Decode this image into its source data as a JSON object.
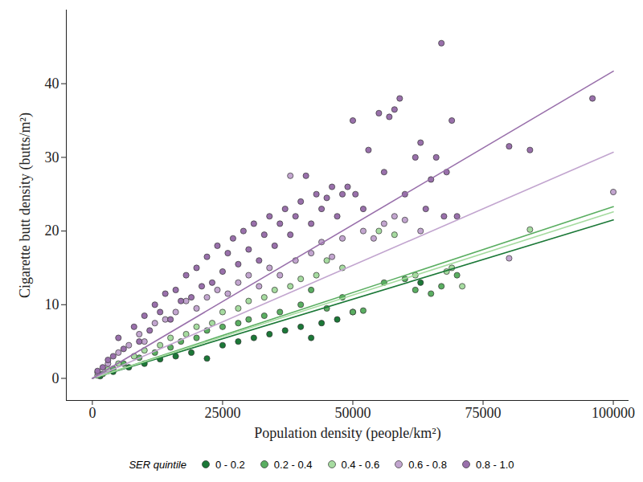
{
  "chart_data": {
    "type": "scatter",
    "x_label": "Population density (people/km²)",
    "y_label": "Cigarette butt density (butts/m²)",
    "xlim": [
      -5000,
      103000
    ],
    "ylim": [
      -3,
      50
    ],
    "xticks": [
      0,
      25000,
      50000,
      75000,
      100000
    ],
    "yticks": [
      0,
      10,
      20,
      30,
      40
    ],
    "grid": false,
    "legend": "bottom",
    "legend_title": "SER quintile",
    "series": [
      {
        "name": "0 - 0.2",
        "color": "#1b7837",
        "values": [
          [
            1500,
            0.3
          ],
          [
            4000,
            0.9
          ],
          [
            7000,
            1.5
          ],
          [
            10000,
            2
          ],
          [
            13000,
            2.6
          ],
          [
            16000,
            3
          ],
          [
            19000,
            3.5
          ],
          [
            22000,
            2.7
          ],
          [
            25000,
            4.5
          ],
          [
            28000,
            5
          ],
          [
            31000,
            5.5
          ],
          [
            34000,
            6
          ],
          [
            37000,
            6.5
          ],
          [
            40000,
            7
          ],
          [
            42000,
            5.5
          ],
          [
            44000,
            7.5
          ],
          [
            47000,
            8
          ],
          [
            50000,
            9
          ],
          [
            63000,
            13
          ]
        ],
        "trend": [
          [
            0,
            0
          ],
          [
            100000,
            21.5
          ]
        ]
      },
      {
        "name": "0.2 - 0.4",
        "color": "#5aae61",
        "values": [
          [
            2000,
            0.6
          ],
          [
            4000,
            1.3
          ],
          [
            6000,
            2
          ],
          [
            9000,
            2.8
          ],
          [
            12000,
            3.5
          ],
          [
            15000,
            4.2
          ],
          [
            17000,
            5
          ],
          [
            20000,
            5.5
          ],
          [
            22000,
            6.5
          ],
          [
            25000,
            7
          ],
          [
            28000,
            7.5
          ],
          [
            30000,
            8
          ],
          [
            33000,
            8.5
          ],
          [
            36000,
            9
          ],
          [
            40000,
            10
          ],
          [
            42000,
            12
          ],
          [
            45000,
            9.5
          ],
          [
            48000,
            11
          ],
          [
            50000,
            9
          ],
          [
            52000,
            9.2
          ],
          [
            56000,
            13
          ],
          [
            60000,
            13.5
          ],
          [
            62000,
            12
          ],
          [
            65000,
            11.5
          ],
          [
            67000,
            12.5
          ],
          [
            70000,
            14
          ]
        ],
        "trend": [
          [
            0,
            0
          ],
          [
            100000,
            23.3
          ]
        ]
      },
      {
        "name": "0.4 - 0.6",
        "color": "#a6dba0",
        "values": [
          [
            1000,
            0.4
          ],
          [
            3000,
            1.2
          ],
          [
            5000,
            2
          ],
          [
            8000,
            3
          ],
          [
            10000,
            3.8
          ],
          [
            13000,
            4.5
          ],
          [
            15000,
            5.5
          ],
          [
            18000,
            6
          ],
          [
            20000,
            7
          ],
          [
            23000,
            7.5
          ],
          [
            25000,
            9
          ],
          [
            28000,
            9.5
          ],
          [
            30000,
            10.5
          ],
          [
            33000,
            11
          ],
          [
            35000,
            12
          ],
          [
            38000,
            12.5
          ],
          [
            40000,
            13.5
          ],
          [
            43000,
            14
          ],
          [
            45000,
            16
          ],
          [
            48000,
            15
          ],
          [
            55000,
            20
          ],
          [
            58000,
            19.5
          ],
          [
            62000,
            14
          ],
          [
            68000,
            14.5
          ],
          [
            69000,
            15
          ],
          [
            71000,
            12.5
          ],
          [
            84000,
            20.2
          ]
        ],
        "trend": [
          [
            0,
            0
          ],
          [
            100000,
            22.6
          ]
        ]
      },
      {
        "name": "0.6 - 0.8",
        "color": "#c2a5cf",
        "values": [
          [
            1000,
            0.8
          ],
          [
            3000,
            2
          ],
          [
            5000,
            3.5
          ],
          [
            7000,
            4.5
          ],
          [
            9000,
            6
          ],
          [
            10000,
            5
          ],
          [
            12000,
            7.5
          ],
          [
            14000,
            8
          ],
          [
            16000,
            9
          ],
          [
            18000,
            10.5
          ],
          [
            20000,
            9.5
          ],
          [
            22000,
            11
          ],
          [
            24000,
            12
          ],
          [
            26000,
            11.5
          ],
          [
            28000,
            13
          ],
          [
            30000,
            14
          ],
          [
            32000,
            12.5
          ],
          [
            34000,
            15
          ],
          [
            36000,
            14
          ],
          [
            38000,
            27.5
          ],
          [
            39000,
            16
          ],
          [
            42000,
            17
          ],
          [
            44000,
            18.5
          ],
          [
            46000,
            16.5
          ],
          [
            48000,
            19
          ],
          [
            52000,
            20
          ],
          [
            54000,
            19
          ],
          [
            56000,
            21
          ],
          [
            58000,
            22
          ],
          [
            60000,
            21.5
          ],
          [
            63000,
            20
          ],
          [
            80000,
            16.3
          ],
          [
            100000,
            25.3
          ]
        ],
        "trend": [
          [
            0,
            0
          ],
          [
            100000,
            30.7
          ]
        ]
      },
      {
        "name": "0.8 - 1.0",
        "color": "#9970ab",
        "values": [
          [
            1000,
            1
          ],
          [
            2000,
            1.5
          ],
          [
            3000,
            2.5
          ],
          [
            4000,
            3
          ],
          [
            5000,
            5.5
          ],
          [
            6000,
            4
          ],
          [
            8000,
            7
          ],
          [
            9000,
            5
          ],
          [
            10000,
            8.5
          ],
          [
            11000,
            6.5
          ],
          [
            12000,
            10
          ],
          [
            13000,
            9
          ],
          [
            14000,
            11.5
          ],
          [
            15000,
            8
          ],
          [
            16000,
            12
          ],
          [
            17000,
            10.5
          ],
          [
            18000,
            14
          ],
          [
            19000,
            11
          ],
          [
            20000,
            15
          ],
          [
            21000,
            12.5
          ],
          [
            22000,
            16.5
          ],
          [
            23000,
            13
          ],
          [
            24000,
            18
          ],
          [
            25000,
            14.5
          ],
          [
            26000,
            17
          ],
          [
            27000,
            19
          ],
          [
            28000,
            15.5
          ],
          [
            29000,
            20
          ],
          [
            30000,
            17.5
          ],
          [
            31000,
            21
          ],
          [
            32000,
            16
          ],
          [
            33000,
            19.5
          ],
          [
            34000,
            22
          ],
          [
            35000,
            18
          ],
          [
            36000,
            21
          ],
          [
            37000,
            23
          ],
          [
            38000,
            19.5
          ],
          [
            39000,
            22
          ],
          [
            40000,
            24
          ],
          [
            41000,
            27.5
          ],
          [
            42000,
            21
          ],
          [
            43000,
            25
          ],
          [
            44000,
            23
          ],
          [
            45000,
            24.5
          ],
          [
            46000,
            26
          ],
          [
            47000,
            22
          ],
          [
            48000,
            25
          ],
          [
            49000,
            26
          ],
          [
            50000,
            35
          ],
          [
            50500,
            25
          ],
          [
            52000,
            23
          ],
          [
            53000,
            31
          ],
          [
            55000,
            36
          ],
          [
            56000,
            28
          ],
          [
            57000,
            35.5
          ],
          [
            58000,
            36.5
          ],
          [
            59000,
            38
          ],
          [
            60000,
            25
          ],
          [
            62000,
            30
          ],
          [
            63000,
            32
          ],
          [
            64000,
            23
          ],
          [
            65000,
            27
          ],
          [
            66000,
            30
          ],
          [
            67000,
            45.5
          ],
          [
            67500,
            22
          ],
          [
            68000,
            28
          ],
          [
            69000,
            35
          ],
          [
            70000,
            22
          ],
          [
            80000,
            31.5
          ],
          [
            84000,
            31
          ],
          [
            96000,
            38
          ]
        ],
        "trend": [
          [
            0,
            0
          ],
          [
            100000,
            41.7
          ]
        ]
      }
    ]
  }
}
